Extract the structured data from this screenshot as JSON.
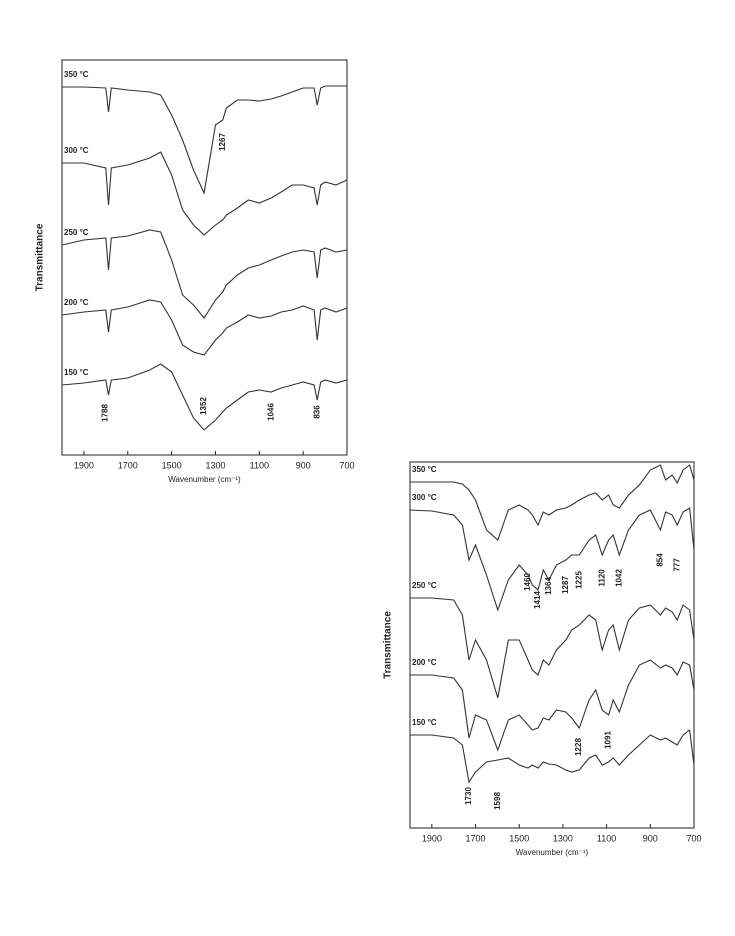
{
  "chart_data": [
    {
      "type": "line",
      "x_label": "Wavenumber (cm⁻¹)",
      "y_label": "Transmittance",
      "xlim": [
        2000,
        700
      ],
      "ylim": [
        0,
        395
      ],
      "xticks": [
        1900,
        1700,
        1500,
        1300,
        1100,
        900,
        700
      ],
      "x": [
        2000,
        1900,
        1800,
        1788,
        1775,
        1700,
        1600,
        1550,
        1500,
        1450,
        1400,
        1352,
        1300,
        1267,
        1250,
        1200,
        1150,
        1100,
        1046,
        1000,
        950,
        900,
        850,
        836,
        820,
        800,
        750,
        700
      ],
      "series": [
        {
          "name": "350 °C",
          "color": "#333333",
          "values": [
            368,
            368,
            367,
            343,
            367,
            365,
            363,
            360,
            340,
            315,
            285,
            262,
            330,
            335,
            347,
            355,
            355,
            354,
            356,
            359,
            363,
            367,
            367,
            350,
            367,
            369,
            369,
            369
          ]
        },
        {
          "name": "300 °C",
          "color": "#333333",
          "values": [
            292,
            292,
            287,
            250,
            287,
            290,
            297,
            303,
            280,
            245,
            230,
            220,
            230,
            235,
            240,
            247,
            255,
            252,
            257,
            263,
            270,
            270,
            267,
            250,
            270,
            273,
            270,
            275
          ]
        },
        {
          "name": "250 °C",
          "color": "#333333",
          "values": [
            210,
            215,
            217,
            185,
            217,
            219,
            225,
            223,
            195,
            160,
            150,
            137,
            155,
            163,
            170,
            180,
            187,
            190,
            195,
            199,
            203,
            205,
            203,
            177,
            205,
            207,
            203,
            205
          ]
        },
        {
          "name": "200 °C",
          "color": "#333333",
          "values": [
            140,
            143,
            145,
            123,
            145,
            148,
            155,
            153,
            135,
            110,
            103,
            100,
            115,
            122,
            127,
            133,
            140,
            137,
            139,
            143,
            145,
            149,
            145,
            115,
            145,
            147,
            143,
            147
          ]
        },
        {
          "name": "150 °C",
          "color": "#333333",
          "values": [
            70,
            72,
            75,
            60,
            75,
            77,
            85,
            91,
            83,
            60,
            37,
            25,
            35,
            43,
            47,
            55,
            63,
            65,
            63,
            67,
            70,
            73,
            70,
            55,
            73,
            75,
            72,
            75
          ]
        }
      ],
      "annotations": [
        "1267",
        "1788",
        "1352",
        "1046",
        "836"
      ]
    },
    {
      "type": "line",
      "x_label": "Wavenumber (cm⁻¹)",
      "y_label": "Transmittance",
      "xlim": [
        2000,
        700
      ],
      "ylim": [
        0,
        366
      ],
      "xticks": [
        1900,
        1700,
        1500,
        1300,
        1100,
        900,
        700
      ],
      "x": [
        2000,
        1900,
        1800,
        1760,
        1730,
        1700,
        1650,
        1598,
        1550,
        1500,
        1460,
        1440,
        1414,
        1390,
        1364,
        1330,
        1287,
        1260,
        1225,
        1180,
        1150,
        1120,
        1091,
        1070,
        1042,
        1000,
        950,
        900,
        854,
        830,
        800,
        777,
        750,
        720,
        700
      ],
      "series": [
        {
          "name": "350 °C",
          "color": "#333333",
          "values": [
            346,
            346,
            346,
            344,
            338,
            328,
            298,
            288,
            318,
            323,
            318,
            313,
            303,
            316,
            313,
            318,
            320,
            323,
            328,
            333,
            335,
            328,
            333,
            323,
            320,
            333,
            343,
            358,
            363,
            348,
            353,
            345,
            358,
            363,
            348
          ]
        },
        {
          "name": "300 °C",
          "color": "#333333",
          "values": [
            318,
            317,
            313,
            303,
            268,
            283,
            253,
            218,
            248,
            263,
            253,
            243,
            238,
            258,
            248,
            263,
            268,
            273,
            273,
            288,
            293,
            273,
            288,
            293,
            273,
            298,
            313,
            318,
            298,
            316,
            313,
            303,
            316,
            320,
            278
          ]
        },
        {
          "name": "250 °C",
          "color": "#333333",
          "values": [
            230,
            230,
            228,
            213,
            168,
            188,
            168,
            130,
            188,
            188,
            168,
            158,
            153,
            168,
            163,
            178,
            188,
            198,
            203,
            213,
            208,
            178,
            198,
            203,
            178,
            208,
            220,
            223,
            213,
            220,
            216,
            208,
            223,
            218,
            188
          ]
        },
        {
          "name": "200 °C",
          "color": "#333333",
          "values": [
            153,
            153,
            150,
            138,
            90,
            113,
            108,
            78,
            108,
            113,
            103,
            98,
            100,
            110,
            108,
            118,
            116,
            110,
            100,
            128,
            138,
            118,
            113,
            128,
            116,
            143,
            163,
            168,
            160,
            163,
            160,
            153,
            166,
            163,
            138
          ]
        },
        {
          "name": "150 °C",
          "color": "#333333",
          "values": [
            93,
            93,
            90,
            83,
            46,
            56,
            66,
            68,
            70,
            63,
            60,
            63,
            60,
            66,
            64,
            63,
            58,
            56,
            58,
            70,
            73,
            63,
            66,
            70,
            63,
            73,
            83,
            93,
            88,
            90,
            86,
            83,
            93,
            98,
            63
          ]
        }
      ],
      "annotations": [
        "1460",
        "1414",
        "1364",
        "1287",
        "1225",
        "1120",
        "1042",
        "854",
        "777",
        "1228",
        "1091",
        "1730",
        "1598"
      ]
    }
  ]
}
